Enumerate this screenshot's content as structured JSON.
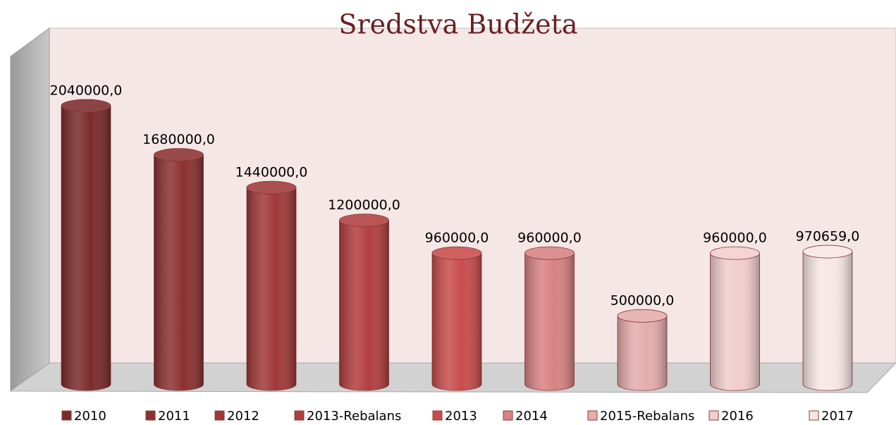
{
  "chart_data": {
    "type": "cylinder-bar",
    "title": "Sredstva Budžeta",
    "categories": [
      "2010",
      "2011",
      "2012",
      "2013-Rebalans",
      "2013",
      "2014",
      "2015-Rebalans",
      "2016",
      "2017"
    ],
    "values": [
      2040000,
      1680000,
      1440000,
      1200000,
      960000,
      960000,
      500000,
      960000,
      970659
    ],
    "value_labels": [
      "2040000,0",
      "1680000,0",
      "1440000,0",
      "1200000,0",
      "960000,0",
      "960000,0",
      "500000,0",
      "960000,0",
      "970659,0"
    ],
    "colors": [
      "#7b2a2a",
      "#8c3030",
      "#a03838",
      "#b23e3e",
      "#c94c4c",
      "#d88282",
      "#e6acac",
      "#f2cdcd",
      "#f9e6e6"
    ],
    "legend": "bottom"
  }
}
